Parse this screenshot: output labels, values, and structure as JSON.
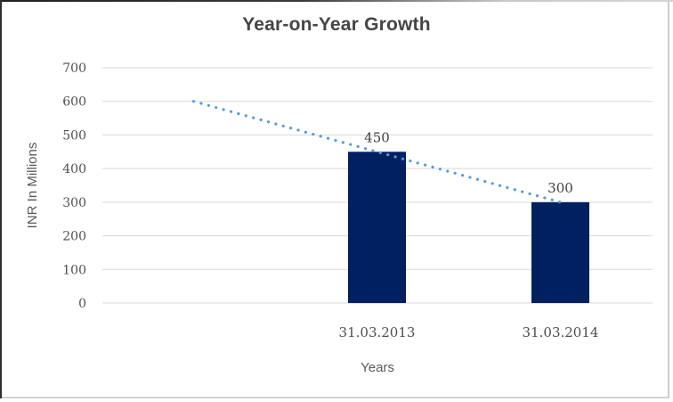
{
  "chart_data": {
    "type": "bar",
    "title": "Year-on-Year Growth",
    "categories": [
      "31.03.2013",
      "31.03.2014"
    ],
    "values": [
      450,
      300
    ],
    "data_labels": [
      "450",
      "300"
    ],
    "xlabel": "Years",
    "ylabel": "INR In Millions",
    "ylim": [
      0,
      700
    ],
    "yticks": [
      0,
      100,
      200,
      300,
      400,
      500,
      600,
      700
    ],
    "grid": true,
    "legend_position": "none",
    "bar_color": "#002060",
    "gridline_color": "#d9d9d9",
    "trendline": {
      "style": "dotted",
      "color": "#5B9BD5",
      "values": [
        600,
        450,
        300
      ],
      "starts_one_category_before_first_bar": true
    },
    "text_colors": {
      "title": "#454545",
      "axis_titles": "#595959",
      "tick_labels": "#4f4f4f",
      "data_labels": "#3f3f3f"
    }
  }
}
